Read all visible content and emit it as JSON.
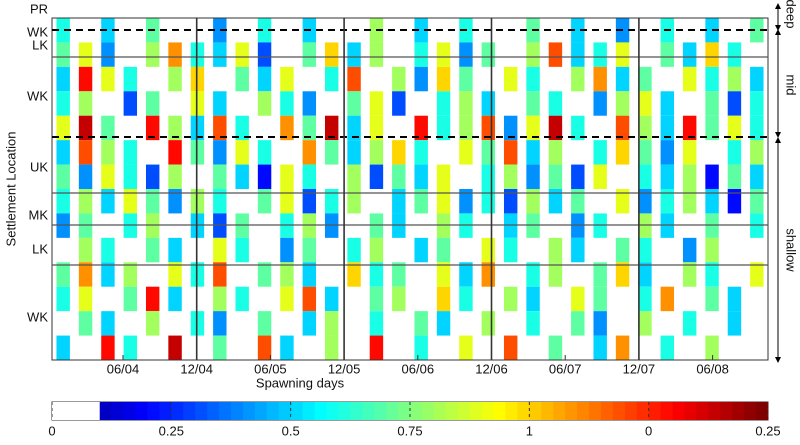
{
  "chart_data": {
    "type": "heatmap",
    "xlabel": "Spawning days",
    "ylabel": "Settlement Location",
    "xticks": [
      "06/04",
      "12/04",
      "06/05",
      "12/05",
      "06/06",
      "12/06",
      "06/07",
      "12/07",
      "06/08"
    ],
    "row_labels": [
      "PR",
      "WK",
      "LK",
      "WK",
      "UK",
      "MK",
      "LK",
      "WK"
    ],
    "zone_labels": [
      "deep",
      "mid",
      "shallow"
    ],
    "colorbar_labels": [
      "0",
      "0.25",
      "0.5",
      "0.75",
      "1",
      "0",
      "0.25"
    ],
    "zlim": [
      0,
      1.5
    ],
    "values": [
      [
        0.6,
        null,
        0.5,
        null,
        0.7,
        null,
        null,
        0.4,
        null,
        0.6,
        null,
        0.5,
        null,
        null,
        0.8,
        null,
        0.5,
        null,
        0.6,
        null,
        null,
        0.7,
        null,
        0.5,
        null,
        0.4,
        null,
        0.6,
        null,
        0.5,
        null,
        0.7
      ],
      [
        0.7,
        0.9,
        0.4,
        null,
        0.8,
        1.1,
        0.6,
        0.5,
        0.9,
        0.3,
        null,
        0.7,
        1.0,
        0.5,
        0.8,
        null,
        0.6,
        0.9,
        0.4,
        0.7,
        null,
        0.8,
        1.2,
        0.5,
        0.6,
        0.9,
        null,
        0.7,
        0.5,
        1.0,
        0.6,
        null
      ],
      [
        0.5,
        1.3,
        0.9,
        0.6,
        null,
        0.8,
        1.0,
        null,
        0.7,
        0.5,
        0.9,
        null,
        0.6,
        1.2,
        null,
        0.8,
        0.4,
        1.0,
        0.7,
        null,
        0.9,
        0.6,
        null,
        0.8,
        1.1,
        0.5,
        0.7,
        null,
        0.9,
        0.6,
        0.8,
        0.5
      ],
      [
        0.6,
        0.8,
        null,
        0.3,
        0.7,
        null,
        0.9,
        0.5,
        null,
        0.8,
        0.6,
        0.4,
        null,
        0.7,
        0.9,
        0.3,
        null,
        0.6,
        0.8,
        0.5,
        null,
        0.7,
        0.6,
        null,
        0.4,
        0.8,
        0.9,
        0.5,
        null,
        0.7,
        0.3,
        0.6
      ],
      [
        0.9,
        1.4,
        0.7,
        null,
        1.3,
        0.8,
        0.5,
        1.2,
        0.6,
        null,
        1.1,
        0.7,
        1.4,
        0.5,
        0.9,
        null,
        1.3,
        0.6,
        0.8,
        1.2,
        0.4,
        0.9,
        1.4,
        0.6,
        null,
        1.2,
        0.8,
        0.5,
        1.3,
        0.7,
        0.9,
        0.6
      ],
      [
        0.5,
        1.2,
        0.8,
        0.6,
        null,
        1.3,
        0.7,
        0.4,
        0.9,
        0.6,
        null,
        1.1,
        0.7,
        0.5,
        0.8,
        1.0,
        0.6,
        null,
        0.9,
        0.7,
        1.2,
        0.5,
        0.8,
        null,
        0.6,
        1.0,
        0.7,
        0.4,
        0.9,
        null,
        0.6,
        0.8
      ],
      [
        0.7,
        0.4,
        0.9,
        0.6,
        0.3,
        0.8,
        null,
        0.7,
        0.5,
        0.2,
        0.9,
        0.6,
        null,
        0.8,
        0.3,
        0.7,
        0.5,
        0.9,
        null,
        0.6,
        0.8,
        0.4,
        0.7,
        0.3,
        0.9,
        null,
        0.6,
        0.5,
        0.8,
        0.2,
        0.7,
        0.5
      ],
      [
        0.6,
        0.8,
        0.5,
        0.9,
        0.7,
        0.4,
        0.8,
        0.6,
        null,
        0.7,
        0.9,
        0.3,
        0.6,
        0.8,
        null,
        0.5,
        0.7,
        0.9,
        0.4,
        0.6,
        0.3,
        0.8,
        0.5,
        0.7,
        null,
        0.9,
        0.4,
        0.6,
        0.8,
        0.5,
        0.2,
        0.7
      ],
      [
        0.4,
        0.7,
        null,
        0.6,
        0.8,
        null,
        0.5,
        0.3,
        0.7,
        null,
        0.6,
        0.8,
        0.4,
        null,
        0.7,
        0.5,
        null,
        0.8,
        0.6,
        null,
        0.5,
        0.7,
        null,
        0.4,
        0.6,
        null,
        0.8,
        0.5,
        null,
        0.7,
        null,
        0.6
      ],
      [
        null,
        0.8,
        0.6,
        null,
        0.7,
        0.5,
        null,
        0.9,
        0.6,
        null,
        0.4,
        0.7,
        null,
        0.6,
        0.8,
        null,
        0.5,
        0.7,
        null,
        0.9,
        0.6,
        null,
        0.8,
        0.5,
        null,
        0.7,
        0.6,
        null,
        0.4,
        0.8,
        null,
        null
      ],
      [
        0.7,
        1.1,
        0.5,
        0.8,
        null,
        0.9,
        0.6,
        1.2,
        null,
        0.7,
        0.8,
        0.5,
        null,
        1.0,
        0.6,
        0.7,
        null,
        0.9,
        0.5,
        1.1,
        null,
        0.6,
        0.8,
        null,
        0.7,
        1.0,
        0.5,
        null,
        0.8,
        0.6,
        null,
        0.9
      ],
      [
        0.6,
        0.9,
        null,
        0.7,
        1.3,
        0.5,
        null,
        0.8,
        0.6,
        null,
        0.9,
        1.2,
        0.5,
        null,
        0.7,
        0.8,
        null,
        1.0,
        0.6,
        null,
        0.8,
        0.5,
        null,
        0.9,
        0.7,
        null,
        0.6,
        1.1,
        null,
        0.7,
        0.5,
        null
      ],
      [
        null,
        0.7,
        0.5,
        null,
        0.8,
        null,
        0.6,
        0.4,
        null,
        0.7,
        null,
        0.5,
        0.8,
        null,
        0.6,
        null,
        0.7,
        0.5,
        null,
        0.8,
        null,
        0.6,
        null,
        0.7,
        0.4,
        null,
        0.8,
        null,
        0.6,
        null,
        0.5,
        null
      ],
      [
        0.5,
        null,
        1.3,
        0.6,
        null,
        1.4,
        null,
        0.7,
        null,
        1.2,
        0.5,
        null,
        0.8,
        null,
        1.3,
        null,
        0.6,
        null,
        0.9,
        null,
        1.2,
        null,
        0.7,
        null,
        0.5,
        1.1,
        null,
        0.6,
        null,
        0.8,
        null,
        null
      ]
    ]
  }
}
